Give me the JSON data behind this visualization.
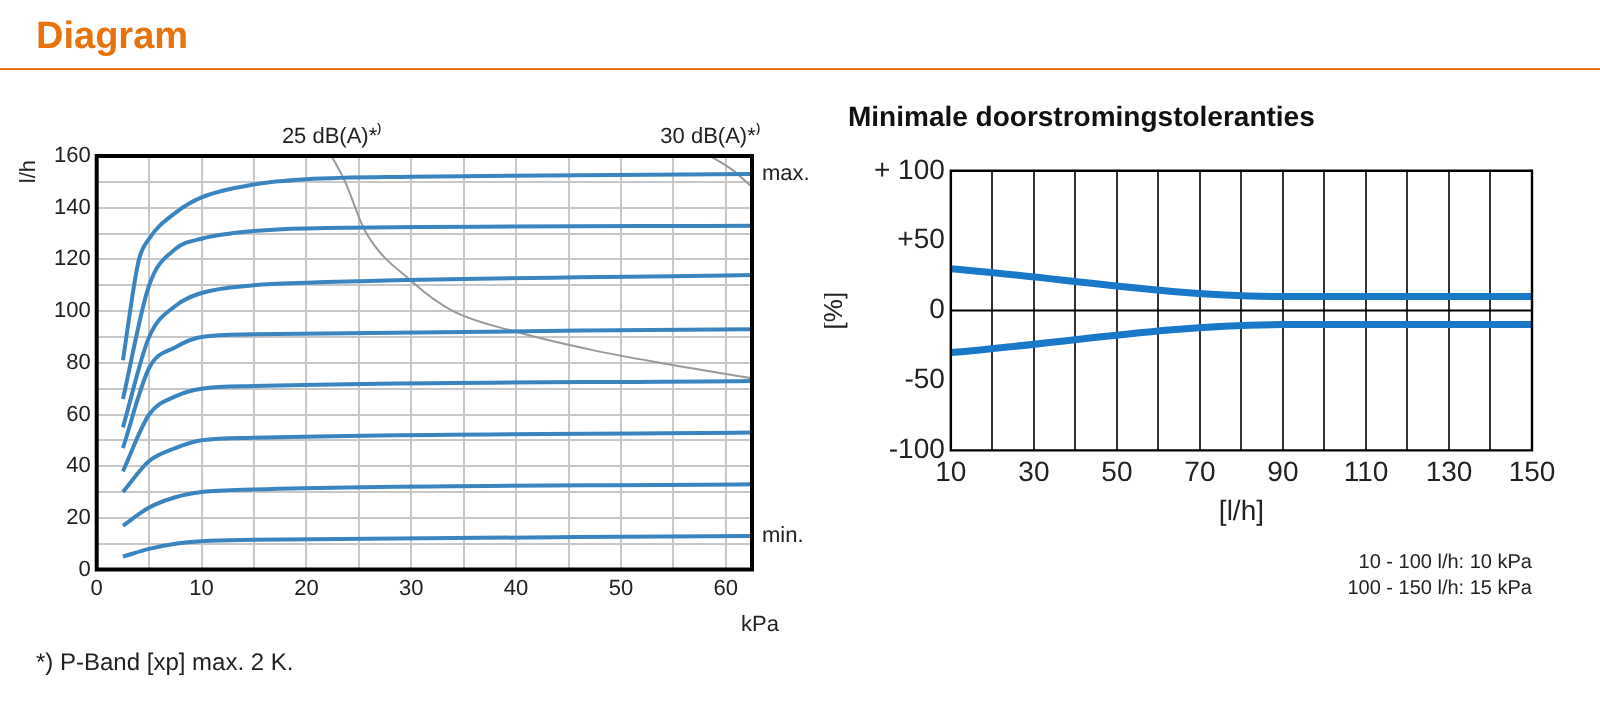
{
  "chart_data": [
    {
      "type": "line",
      "title": "Diagram",
      "xlabel": "kPa",
      "ylabel": "l/h",
      "xlim": [
        0,
        62.5
      ],
      "ylim": [
        0,
        160
      ],
      "xticks": [
        0,
        {
          "value": 5,
          "label": null
        },
        10,
        {
          "value": 15,
          "label": null
        },
        20,
        {
          "value": 25,
          "label": null
        },
        30,
        {
          "value": 35,
          "label": null
        },
        40,
        {
          "value": 45,
          "label": null
        },
        50,
        {
          "value": 55,
          "label": null
        },
        60
      ],
      "yticks": [
        0,
        {
          "value": 10,
          "label": null
        },
        20,
        {
          "value": 30,
          "label": null
        },
        40,
        {
          "value": 50,
          "label": null
        },
        60,
        {
          "value": 70,
          "label": null
        },
        80,
        {
          "value": 90,
          "label": null
        },
        100,
        {
          "value": 110,
          "label": null
        },
        120,
        {
          "value": 130,
          "label": null
        },
        140,
        {
          "value": 150,
          "label": null
        },
        160
      ],
      "grid": true,
      "marker": "none",
      "series": [
        {
          "color": "#3a85c0",
          "x": [
            2.5,
            4,
            5,
            7.5,
            10,
            15,
            20,
            30,
            62.5
          ],
          "values": [
            81,
            119.5,
            128,
            138,
            144,
            149,
            151,
            152,
            153
          ]
        },
        {
          "color": "#3a85c0",
          "x": [
            2.5,
            5,
            7.5,
            10,
            15,
            20,
            62.5
          ],
          "values": [
            66,
            110,
            124,
            128,
            131,
            132,
            133
          ]
        },
        {
          "color": "#3a85c0",
          "x": [
            2.5,
            5,
            7.5,
            10,
            15,
            20,
            62.5
          ],
          "values": [
            55,
            90,
            102,
            107,
            110,
            111,
            114
          ]
        },
        {
          "color": "#3a85c0",
          "x": [
            2.5,
            5,
            7.5,
            10,
            15,
            62.5
          ],
          "values": [
            47,
            78,
            86,
            90,
            91,
            93
          ]
        },
        {
          "color": "#3a85c0",
          "x": [
            2.5,
            5,
            7.5,
            10,
            15,
            62.5
          ],
          "values": [
            38,
            60,
            67,
            70,
            71,
            73
          ]
        },
        {
          "color": "#3a85c0",
          "x": [
            2.5,
            5,
            7.5,
            10,
            15,
            62.5
          ],
          "values": [
            30,
            42,
            47,
            50,
            51,
            53
          ]
        },
        {
          "color": "#3a85c0",
          "x": [
            2.5,
            5,
            7.5,
            10,
            15,
            62.5
          ],
          "values": [
            17,
            24,
            28,
            30,
            31,
            33
          ]
        },
        {
          "color": "#3a85c0",
          "x": [
            2.5,
            5,
            7.5,
            10,
            15,
            62.5
          ],
          "values": [
            5,
            8,
            10,
            11,
            11.5,
            13
          ]
        },
        {
          "name": "25 dB(A)*⁾",
          "color": "#9a9a9a",
          "x": [
            22.4,
            23.7,
            25.6,
            30.2,
            34,
            40,
            47.2,
            53.7,
            62.5
          ],
          "values": [
            160,
            150,
            131,
            111,
            100,
            92,
            85,
            80,
            74
          ]
        },
        {
          "name": "30 dB(A)*⁾",
          "color": "#9a9a9a",
          "x": [
            58.5,
            60.5,
            62.5
          ],
          "values": [
            160,
            155,
            148
          ]
        }
      ],
      "annotations": [
        {
          "text": "max.",
          "x": 62.5,
          "y": 153
        },
        {
          "text": "min.",
          "x": 62.5,
          "y": 13
        },
        "*) P-Band [xp] max. 2 K."
      ]
    },
    {
      "type": "line",
      "title": "Minimale doorstromingstoleranties",
      "xlabel": "[l/h]",
      "ylabel": "[%]",
      "xlim": [
        10,
        150
      ],
      "ylim": [
        -100,
        100
      ],
      "xticks": [
        10,
        {
          "value": 20,
          "label": null
        },
        30,
        {
          "value": 40,
          "label": null
        },
        50,
        {
          "value": 60,
          "label": null
        },
        70,
        {
          "value": 80,
          "label": null
        },
        90,
        {
          "value": 100,
          "label": null
        },
        110,
        {
          "value": 120,
          "label": null
        },
        130,
        {
          "value": 140,
          "label": null
        },
        150
      ],
      "yticks": [
        {
          "value": -100,
          "label": "-100"
        },
        {
          "value": -50,
          "label": "-50"
        },
        0,
        {
          "value": 50,
          "label": "+50"
        },
        {
          "value": 100,
          "label": "+ 100"
        }
      ],
      "grid": "x",
      "marker": "none",
      "ref_lines": [
        {
          "axis": "y",
          "value": 0,
          "color": "#000000"
        }
      ],
      "series": [
        {
          "color": "#1a78c8",
          "x": [
            10,
            90,
            150
          ],
          "values": [
            30,
            10,
            10
          ]
        },
        {
          "color": "#1a78c8",
          "x": [
            10,
            90,
            150
          ],
          "values": [
            -30,
            -10,
            -10
          ]
        }
      ],
      "annotations": [
        "10 - 100 l/h: 10 kPa",
        "100 - 150 l/h: 15 kPa"
      ]
    }
  ]
}
